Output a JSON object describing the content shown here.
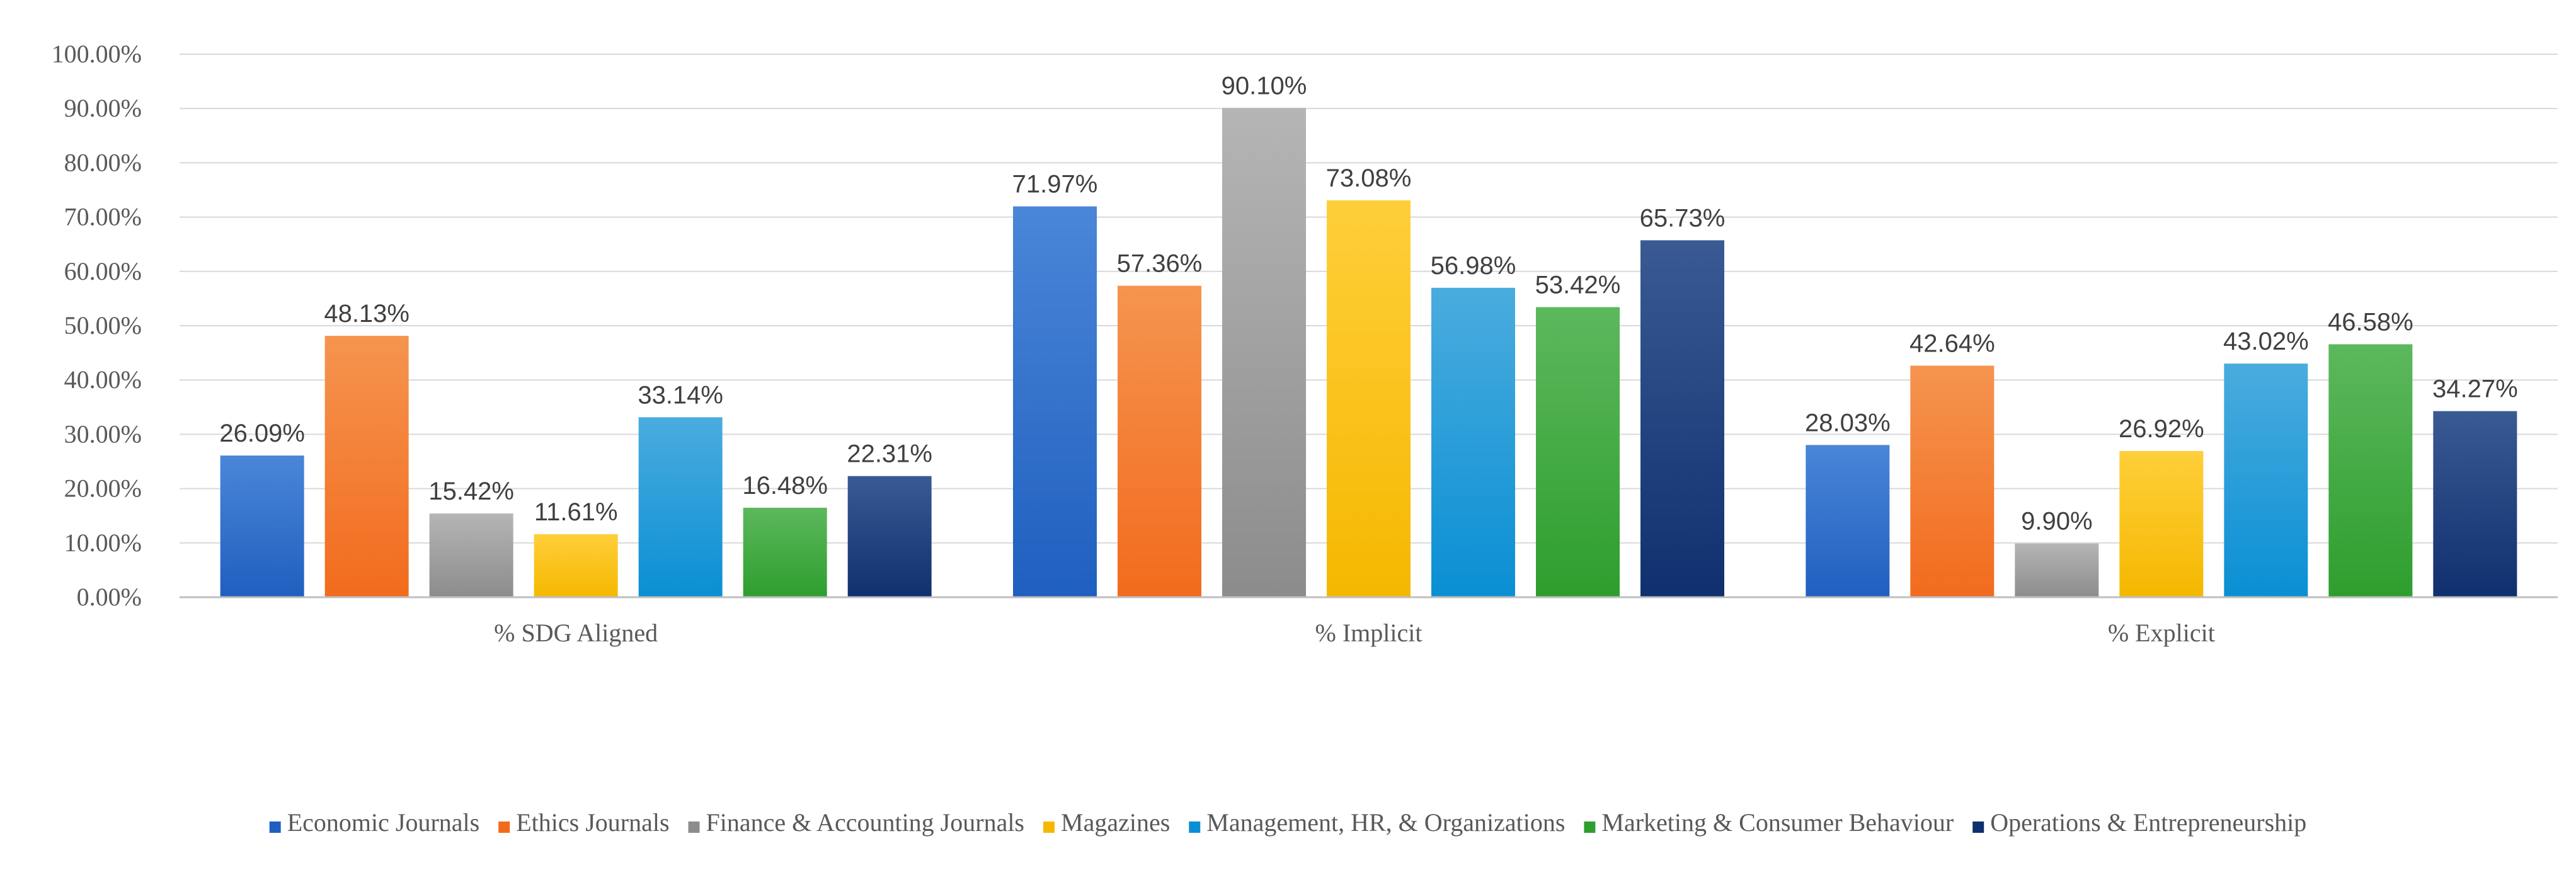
{
  "chart_data": {
    "type": "bar",
    "title": "",
    "xlabel": "",
    "ylabel": "",
    "ylim": [
      0,
      100
    ],
    "yticks": [
      "0.00%",
      "10.00%",
      "20.00%",
      "30.00%",
      "40.00%",
      "50.00%",
      "60.00%",
      "70.00%",
      "80.00%",
      "90.00%",
      "100.00%"
    ],
    "grid": true,
    "legend_position": "bottom",
    "categories": [
      "% SDG Aligned",
      "% Implicit",
      "% Explicit"
    ],
    "series": [
      {
        "name": "Economic Journals",
        "color": "#1f5fbf",
        "color_light": "#4a86d8",
        "values": [
          26.09,
          71.97,
          28.03
        ],
        "labels": [
          "26.09%",
          "71.97%",
          "28.03%"
        ]
      },
      {
        "name": "Ethics Journals",
        "color": "#f26b1d",
        "color_light": "#f5944f",
        "values": [
          48.13,
          57.36,
          42.64
        ],
        "labels": [
          "48.13%",
          "57.36%",
          "42.64%"
        ]
      },
      {
        "name": "Finance & Accounting Journals",
        "color": "#8c8c8c",
        "color_light": "#b5b5b5",
        "values": [
          15.42,
          90.1,
          9.9
        ],
        "labels": [
          "15.42%",
          "90.10%",
          "9.90%"
        ]
      },
      {
        "name": "Magazines",
        "color": "#f5b800",
        "color_light": "#ffcf3a",
        "values": [
          11.61,
          73.08,
          26.92
        ],
        "labels": [
          "11.61%",
          "73.08%",
          "26.92%"
        ]
      },
      {
        "name": "Management, HR, & Organizations",
        "color": "#0a8fd4",
        "color_light": "#4aacde",
        "values": [
          33.14,
          56.98,
          43.02
        ],
        "labels": [
          "33.14%",
          "56.98%",
          "43.02%"
        ]
      },
      {
        "name": "Marketing & Consumer Behaviour",
        "color": "#2e9e2e",
        "color_light": "#5cb85c",
        "values": [
          16.48,
          53.42,
          46.58
        ],
        "labels": [
          "16.48%",
          "53.42%",
          "46.58%"
        ]
      },
      {
        "name": "Operations & Entrepreneurship",
        "color": "#0f2f6e",
        "color_light": "#3a5a94",
        "values": [
          22.31,
          65.73,
          34.27
        ],
        "labels": [
          "22.31%",
          "65.73%",
          "34.27%"
        ]
      }
    ]
  }
}
